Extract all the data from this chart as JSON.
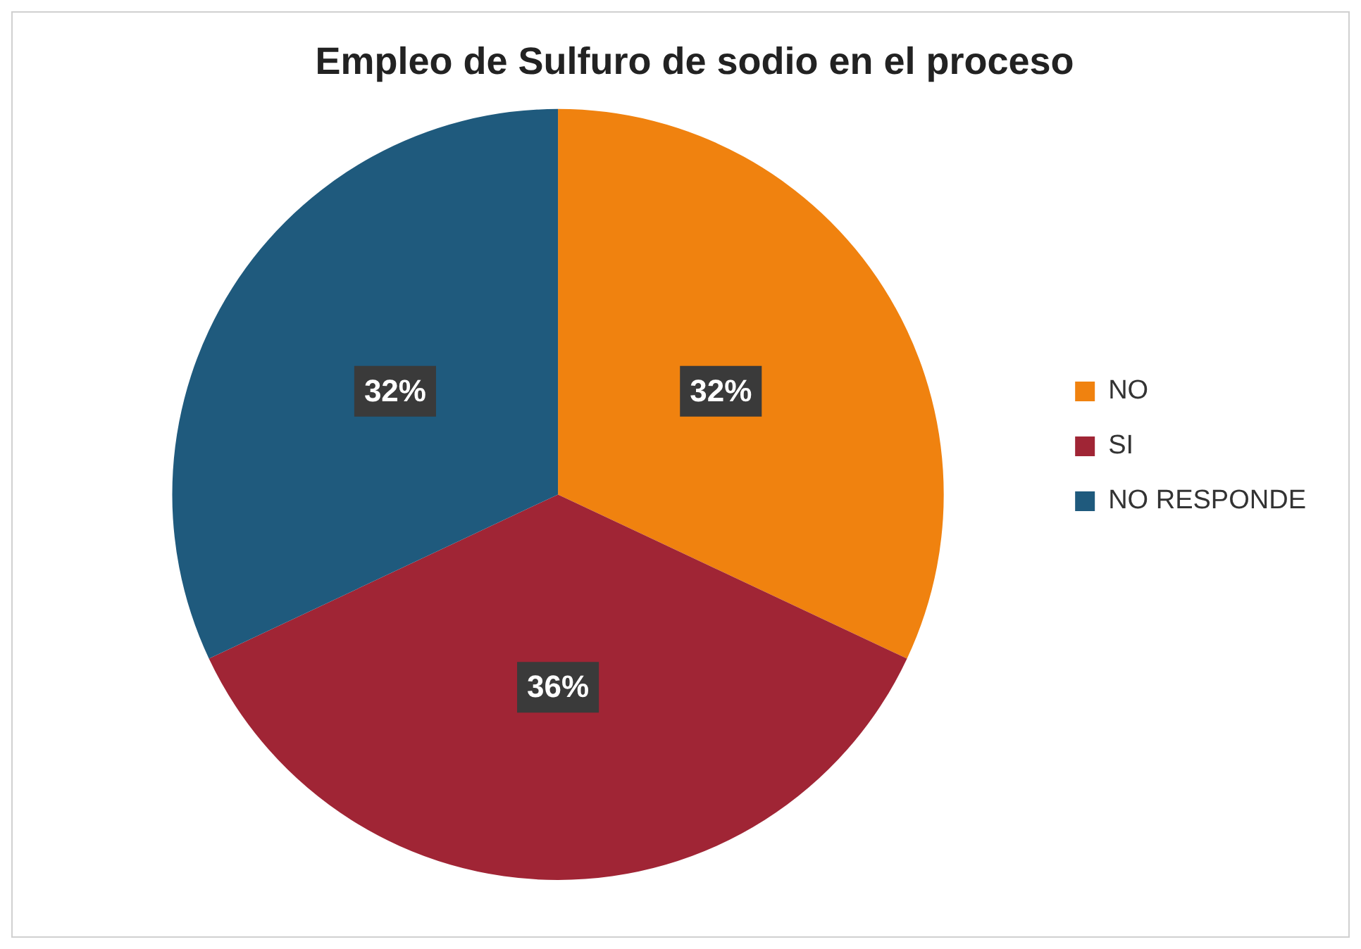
{
  "chart_data": {
    "type": "pie",
    "title": "Empleo de Sulfuro de sodio en el proceso",
    "categories": [
      "NO",
      "SI",
      "NO RESPONDE"
    ],
    "values": [
      32,
      36,
      32
    ],
    "colors": [
      "#f0820f",
      "#a02535",
      "#1f5a7d"
    ],
    "value_labels": [
      "32%",
      "36%",
      "32%"
    ],
    "legend": "right"
  }
}
